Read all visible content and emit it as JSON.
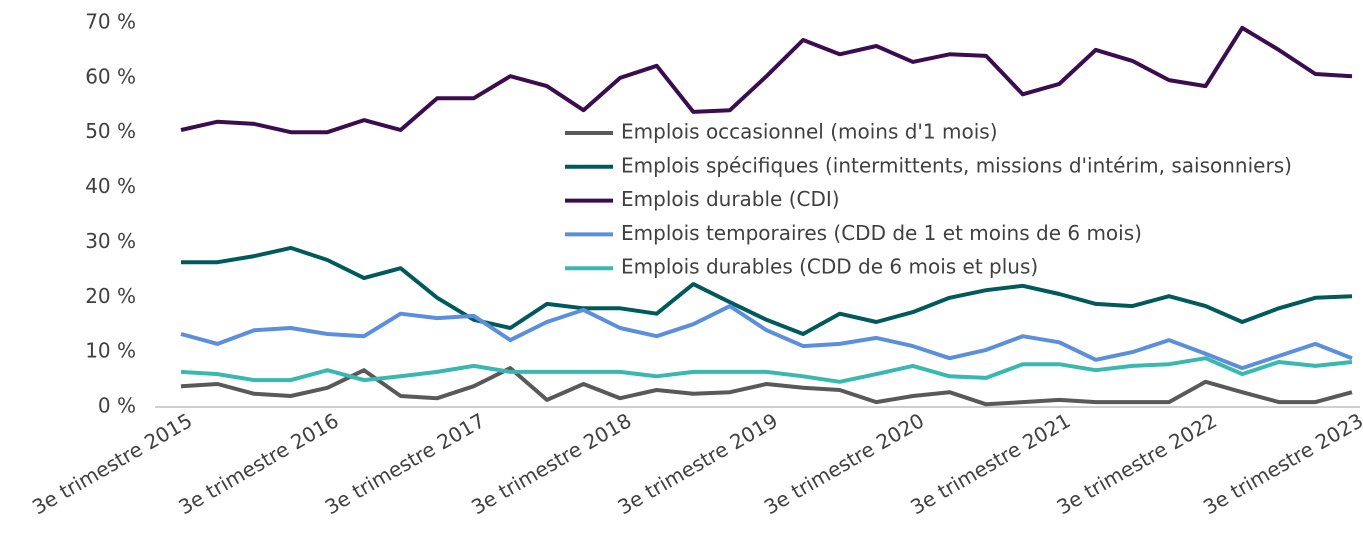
{
  "chart_data": {
    "type": "line",
    "categories": [
      "3e trimestre 2015",
      null,
      null,
      null,
      "3e trimestre 2016",
      null,
      null,
      null,
      "3e trimestre 2017",
      null,
      null,
      null,
      "3e trimestre 2018",
      null,
      null,
      null,
      "3e trimestre 2019",
      null,
      null,
      null,
      "3e trimestre 2020",
      null,
      null,
      null,
      "3e trimestre 2021",
      null,
      null,
      null,
      "3e trimestre 2022",
      null,
      null,
      null,
      "3e trimestre 2023"
    ],
    "series": [
      {
        "name": "Emplois occasionnel (moins d'1 mois)",
        "color": "#595959",
        "values": [
          3.8,
          4.2,
          2.4,
          2,
          3.5,
          6.7,
          2,
          1.6,
          3.8,
          7.1,
          1.3,
          4.2,
          1.6,
          3.1,
          2.4,
          2.7,
          4.2,
          3.5,
          3.1,
          0.9,
          2,
          2.7,
          0.5,
          0.9,
          1.3,
          0.9,
          0.9,
          0.9,
          4.6,
          2.7,
          0.9,
          0.9,
          2.7
        ]
      },
      {
        "name": "Emplois spécifiques (intermittents, missions d'intérim, saisonniers)",
        "color": "#005a5b",
        "values": [
          26.4,
          26.4,
          27.5,
          29,
          26.8,
          23.5,
          25.3,
          19.9,
          15.9,
          14.4,
          18.8,
          18,
          18,
          17,
          22.4,
          19.1,
          15.9,
          13.3,
          17,
          15.5,
          17.3,
          19.9,
          21.3,
          22.1,
          20.6,
          18.8,
          18.4,
          20.2,
          18.4,
          15.5,
          18,
          19.9,
          20.2
        ]
      },
      {
        "name": "Emplois durable (CDI)",
        "color": "#3b0d4f",
        "values": [
          50.5,
          52,
          51.6,
          50.1,
          50.1,
          52.3,
          50.5,
          56.3,
          56.3,
          60.3,
          58.5,
          54.1,
          60,
          62.2,
          53.8,
          54.1,
          60.3,
          66.9,
          64.3,
          65.8,
          62.9,
          64.3,
          64,
          57,
          58.9,
          65.1,
          63.1,
          59.6,
          58.5,
          69.1,
          65.1,
          60.7,
          60.3
        ]
      },
      {
        "name": "Emplois temporaires (CDD de 1 et moins de 6 mois)",
        "color": "#5b8fdb",
        "values": [
          13.3,
          11.5,
          14,
          14.4,
          13.3,
          12.9,
          17,
          16.2,
          16.6,
          12.2,
          15.5,
          17.7,
          14.4,
          12.9,
          15.1,
          18.4,
          14,
          11.1,
          11.5,
          12.6,
          11.1,
          8.9,
          10.4,
          12.9,
          11.8,
          8.6,
          10,
          12.2,
          9.7,
          7.1,
          9.3,
          11.5,
          8.9
        ]
      },
      {
        "name": "Emplois durables (CDD de 6 mois et plus)",
        "color": "#38b8b0",
        "values": [
          6.4,
          6,
          4.9,
          4.9,
          6.7,
          4.9,
          5.6,
          6.4,
          7.5,
          6.4,
          6.4,
          6.4,
          6.4,
          5.6,
          6.4,
          6.4,
          6.4,
          5.6,
          4.6,
          6,
          7.5,
          5.6,
          5.3,
          7.8,
          7.8,
          6.7,
          7.5,
          7.8,
          8.9,
          6,
          8.2,
          7.5,
          8.2
        ]
      }
    ],
    "ylim": [
      0,
      70
    ],
    "yticks": [
      {
        "value": 0,
        "label": "0 %"
      },
      {
        "value": 10,
        "label": "10 %"
      },
      {
        "value": 20,
        "label": "20 %"
      },
      {
        "value": 30,
        "label": "30 %"
      },
      {
        "value": 40,
        "label": "40 %"
      },
      {
        "value": 50,
        "label": "50 %"
      },
      {
        "value": 60,
        "label": "60 %"
      },
      {
        "value": 70,
        "label": "70 %"
      }
    ],
    "grid": false,
    "legend": "center"
  }
}
